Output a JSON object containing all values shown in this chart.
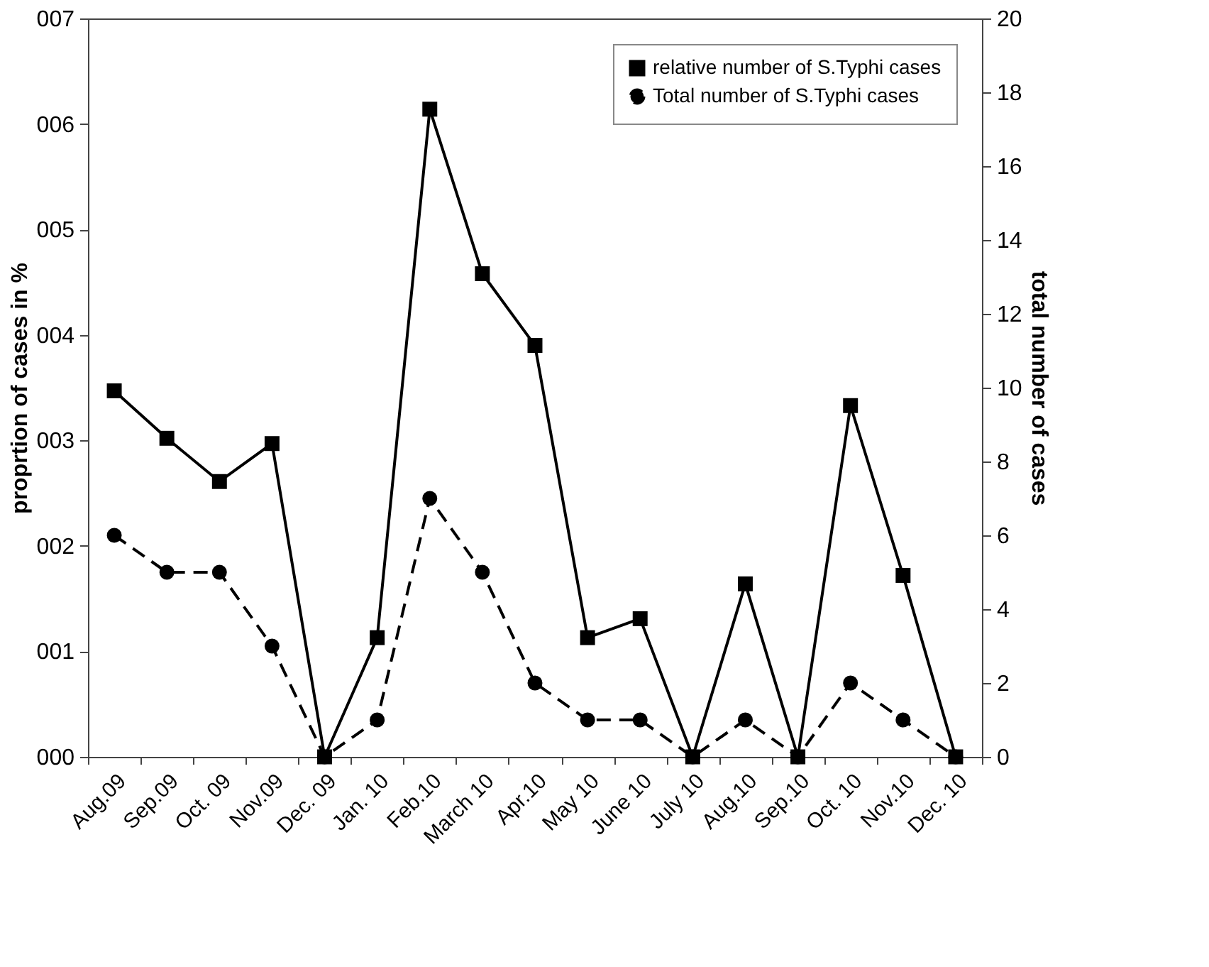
{
  "chart_data": {
    "type": "line",
    "ylabel": "proprtion of cases in %",
    "y2label": "total number of cases",
    "categories": [
      "Aug.09",
      "Sep.09",
      "Oct. 09",
      "Nov.09",
      "Dec. 09",
      "Jan. 10",
      "Feb.10",
      "March 10",
      "Apr.10",
      "May 10",
      "June 10",
      "July 10",
      "Aug.10",
      "Sep.10",
      "Oct. 10",
      "Nov.10",
      "Dec. 10"
    ],
    "series": [
      {
        "name": "relative number of S.Typhi cases",
        "color": "#000000",
        "marker": "square",
        "line_style": "solid",
        "values": [
          3.47,
          3.02,
          2.61,
          2.97,
          0,
          1.13,
          6.14,
          4.58,
          3.9,
          1.13,
          1.31,
          0,
          1.64,
          0,
          3.33,
          1.72,
          0
        ]
      },
      {
        "name": "Total number of S.Typhi cases",
        "color": "#000000",
        "marker": "circle",
        "line_style": "dashed",
        "axis": "y2",
        "values": [
          6,
          5,
          5,
          3,
          0,
          1,
          7,
          5,
          2,
          1,
          1,
          0,
          1,
          0,
          2,
          1,
          0
        ]
      }
    ],
    "ylim": [
      0,
      7
    ],
    "yticks": [
      {
        "value": 0,
        "label": "000"
      },
      {
        "value": 1,
        "label": "001"
      },
      {
        "value": 2,
        "label": "002"
      },
      {
        "value": 3,
        "label": "003"
      },
      {
        "value": 4,
        "label": "004"
      },
      {
        "value": 5,
        "label": "005"
      },
      {
        "value": 6,
        "label": "006"
      },
      {
        "value": 7,
        "label": "007"
      }
    ],
    "y2lim": [
      0,
      20
    ],
    "y2ticks": [
      0,
      2,
      4,
      6,
      8,
      10,
      12,
      14,
      16,
      18,
      20
    ],
    "grid": false,
    "legend": "top right"
  }
}
